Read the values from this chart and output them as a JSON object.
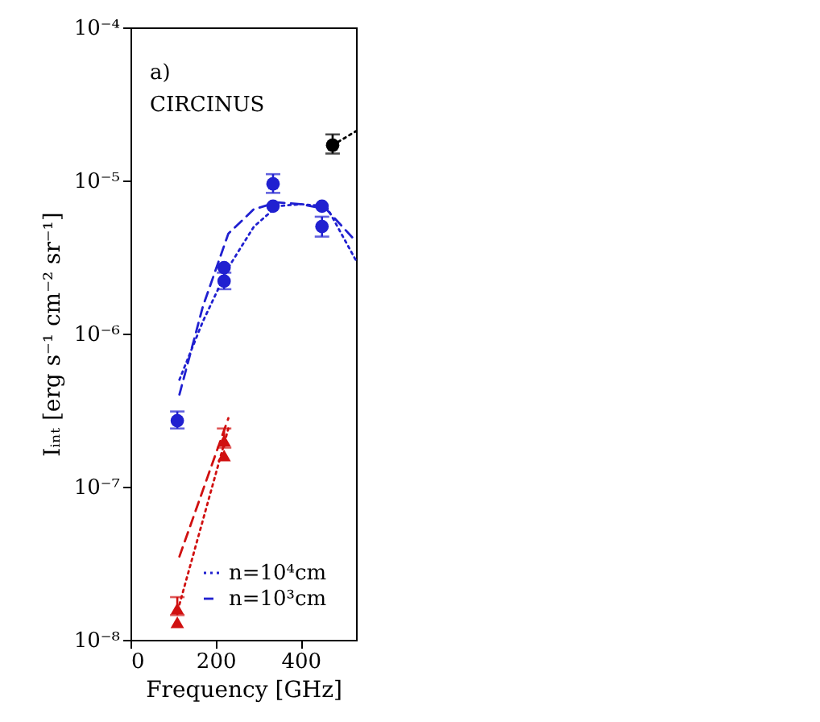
{
  "chart_data": {
    "type": "scatter",
    "xlabel": "Frequency [GHz]",
    "ylabel": "Iᵢₙₜ [erg s⁻¹ cm⁻² sr⁻¹]",
    "annotations": [
      "a)",
      "CIRCINUS"
    ],
    "log": "y",
    "xlim": [
      0,
      530
    ],
    "ylim": [
      1e-08,
      0.0001
    ],
    "xticks": [
      0,
      200,
      400
    ],
    "yticks": [
      {
        "value": 1e-08,
        "label": "10⁻⁸"
      },
      {
        "value": 1e-07,
        "label": "10⁻⁷"
      },
      {
        "value": 1e-06,
        "label": "10⁻⁶"
      },
      {
        "value": 1e-05,
        "label": "10⁻⁵"
      },
      {
        "value": 0.0001,
        "label": "10⁻⁴"
      }
    ],
    "legend": "bottom right",
    "grid": false,
    "series": [
      {
        "name": "n=10⁴cm",
        "type": "line",
        "line_style": "dotted",
        "color": "#2020d0",
        "x": [
          115,
          170,
          230,
          290,
          345,
          400,
          460,
          530
        ],
        "values": [
          5e-07,
          1.2e-06,
          2.7e-06,
          5e-06,
          6.8e-06,
          7e-06,
          6.8e-06,
          3e-06
        ]
      },
      {
        "name": "n=10³cm",
        "type": "line",
        "line_style": "dashed",
        "color": "#2020d0",
        "x": [
          115,
          170,
          230,
          290,
          345,
          400,
          460,
          530
        ],
        "values": [
          4e-07,
          1.5e-06,
          4.5e-06,
          6.5e-06,
          7.2e-06,
          7e-06,
          6.5e-06,
          4e-06
        ]
      },
      {
        "type": "line",
        "line_style": "dotted",
        "color": "#d01010",
        "x": [
          115,
          230
        ],
        "values": [
          1.7e-08,
          2.4e-07
        ]
      },
      {
        "type": "line",
        "line_style": "dashed",
        "color": "#d01010",
        "x": [
          115,
          230
        ],
        "values": [
          3.5e-08,
          2.8e-07
        ]
      },
      {
        "type": "line",
        "line_style": "dotted",
        "color": "#000000",
        "x": [
          475,
          530
        ],
        "values": [
          1.7e-05,
          2.1e-05
        ]
      },
      {
        "marker": "circle",
        "color": "#2020d0",
        "x": [
          110,
          220,
          335,
          450
        ],
        "values": [
          2.7e-07,
          2.2e-06,
          9.5e-06,
          5e-06
        ],
        "errors": [
          [
            2.4e-07,
            3.1e-07
          ],
          [
            1.95e-06,
            2.5e-06
          ],
          [
            8.3e-06,
            1.1e-05
          ],
          [
            4.3e-06,
            5.8e-06
          ]
        ]
      },
      {
        "marker": "circle",
        "color": "#2020d0",
        "x": [
          220,
          335,
          450
        ],
        "values": [
          2.7e-06,
          6.8e-06,
          6.8e-06
        ]
      },
      {
        "type": "scatter",
        "marker": "circle",
        "color": "#000000",
        "x": [
          475
        ],
        "values": [
          1.7e-05
        ],
        "errors": [
          [
            1.5e-05,
            2e-05
          ]
        ]
      },
      {
        "type": "scatter",
        "marker": "triangle",
        "color": "#d01010",
        "x": [
          110,
          220
        ],
        "values": [
          1.6e-08,
          2e-07
        ],
        "errors": [
          [
            1.45e-08,
            1.9e-08
          ],
          [
            1.8e-07,
            2.4e-07
          ]
        ]
      },
      {
        "type": "scatter",
        "marker": "triangle",
        "color": "#d01010",
        "x": [
          110,
          220
        ],
        "values": [
          1.3e-08,
          1.6e-07
        ]
      }
    ]
  }
}
